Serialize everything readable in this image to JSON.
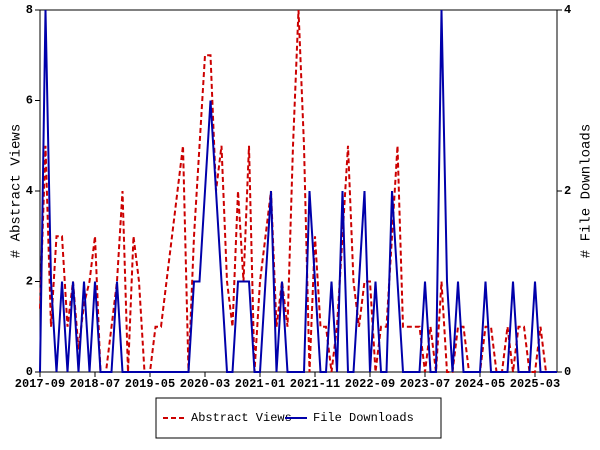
{
  "chart_data": {
    "type": "line",
    "y_label": "# Abstract Views",
    "y2_label": "# File Downloads",
    "categories": [
      "2017-09",
      null,
      null,
      null,
      null,
      null,
      null,
      null,
      null,
      null,
      "2018-07",
      null,
      null,
      null,
      null,
      null,
      null,
      null,
      null,
      null,
      "2019-05",
      null,
      null,
      null,
      null,
      null,
      null,
      null,
      null,
      null,
      "2020-03",
      null,
      null,
      null,
      null,
      null,
      null,
      null,
      null,
      null,
      "2021-01",
      null,
      null,
      null,
      null,
      null,
      null,
      null,
      null,
      null,
      "2021-11",
      null,
      null,
      null,
      null,
      null,
      null,
      null,
      null,
      null,
      "2022-09",
      null,
      null,
      null,
      null,
      null,
      null,
      null,
      null,
      null,
      "2023-07",
      null,
      null,
      null,
      null,
      null,
      null,
      null,
      null,
      null,
      "2024-05",
      null,
      null,
      null,
      null,
      null,
      null,
      null,
      null,
      null,
      "2025-03",
      null,
      null,
      null,
      null
    ],
    "series": [
      {
        "name": "Abstract Views",
        "color": "#cc0000",
        "linestyle": "dashed",
        "axis": "y",
        "values": [
          1.4,
          5,
          1,
          3,
          3,
          1,
          2,
          0.5,
          1.5,
          2,
          3,
          0,
          0,
          1,
          2,
          4,
          0,
          3,
          2,
          0,
          0,
          1,
          1,
          2,
          3,
          4,
          5,
          0,
          3,
          5,
          7,
          7,
          4,
          5,
          2,
          1,
          4,
          2,
          5,
          0,
          2,
          3,
          4,
          1,
          2,
          1,
          5,
          8,
          5,
          0,
          3,
          1,
          1,
          0,
          1,
          3,
          5,
          2,
          1,
          2,
          2,
          0,
          1,
          1,
          3,
          5,
          1,
          1,
          1,
          1,
          0,
          1,
          0,
          2,
          0,
          0,
          1,
          1,
          0,
          0,
          0,
          1,
          1,
          0,
          0,
          1,
          0,
          1,
          1,
          0,
          0,
          1,
          0,
          0,
          0
        ]
      },
      {
        "name": "File Downloads",
        "color": "#0000aa",
        "linestyle": "solid",
        "axis": "y2",
        "values": [
          0,
          4,
          1,
          0,
          1,
          0,
          1,
          0,
          1,
          0,
          1,
          0,
          0,
          0,
          1,
          0,
          0,
          0,
          0,
          0,
          0,
          0,
          0,
          0,
          0,
          0,
          0,
          0,
          1,
          1,
          2,
          3,
          2,
          1,
          0,
          0,
          1,
          1,
          1,
          0,
          0,
          1,
          2,
          0,
          1,
          0,
          0,
          0,
          0,
          2,
          1,
          0,
          0,
          1,
          0,
          2,
          0,
          0,
          1,
          2,
          0,
          1,
          0,
          0,
          2,
          1,
          0,
          0,
          0,
          0,
          1,
          0,
          0,
          4,
          1,
          0,
          1,
          0,
          0,
          0,
          0,
          1,
          0,
          0,
          0,
          0,
          1,
          0,
          0,
          0,
          1,
          0,
          0,
          0,
          0
        ]
      }
    ],
    "ylim": [
      0,
      8
    ],
    "yticks": [
      0,
      2,
      4,
      6,
      8
    ],
    "y2lim": [
      0,
      4
    ],
    "y2ticks": [
      0,
      2,
      4
    ],
    "grid": false,
    "legend": "bottom"
  }
}
